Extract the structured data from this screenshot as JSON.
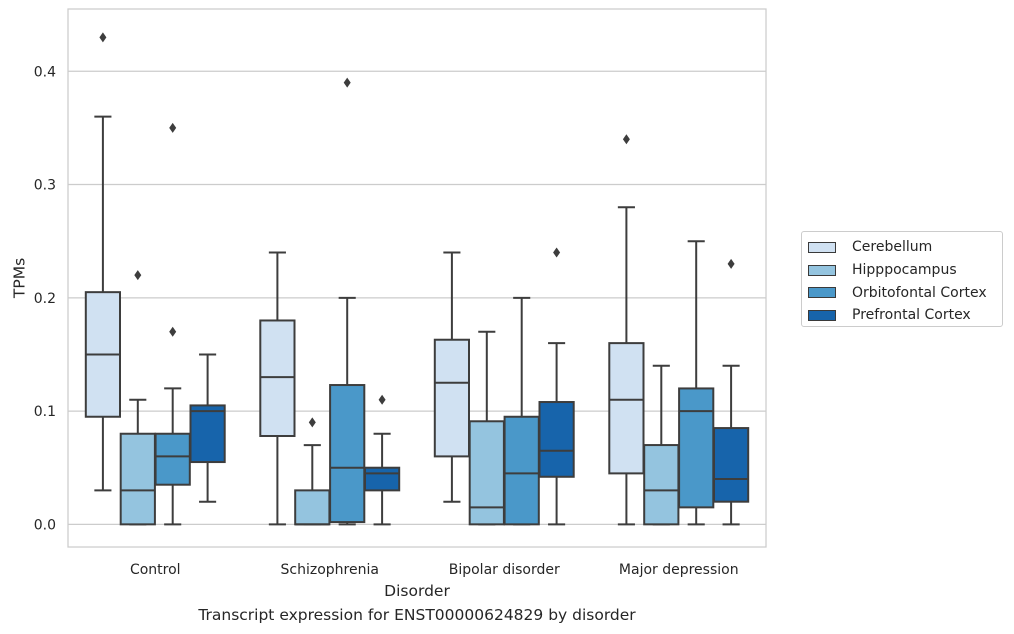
{
  "caption": "Transcript expression for ENST00000624829 by disorder",
  "legend": {
    "items": [
      {
        "label": "Cerebellum",
        "color": "#d0e1f2"
      },
      {
        "label": "Hipppocampus",
        "color": "#94c4df"
      },
      {
        "label": "Orbitofontal Cortex",
        "color": "#4a98c9"
      },
      {
        "label": "Prefrontal Cortex",
        "color": "#1764ab"
      }
    ]
  },
  "chart_data": {
    "type": "box",
    "xlabel": "Disorder",
    "ylabel": "TPMs",
    "ylim": [
      -0.02,
      0.455
    ],
    "yticks": [
      "0.0",
      "0.1",
      "0.2",
      "0.3",
      "0.4"
    ],
    "ytick_values": [
      0.0,
      0.1,
      0.2,
      0.3,
      0.4
    ],
    "grid": true,
    "legend_position": "outside-right",
    "categories": [
      "Control",
      "Schizophrenia",
      "Bipolar disorder",
      "Major depression"
    ],
    "series": [
      {
        "name": "Cerebellum",
        "color": "#d0e1f2",
        "boxes": [
          {
            "whislo": 0.03,
            "q1": 0.095,
            "med": 0.15,
            "q3": 0.205,
            "whishi": 0.36,
            "fliers": [
              0.43
            ]
          },
          {
            "whislo": 0.0,
            "q1": 0.078,
            "med": 0.13,
            "q3": 0.18,
            "whishi": 0.24,
            "fliers": []
          },
          {
            "whislo": 0.02,
            "q1": 0.06,
            "med": 0.125,
            "q3": 0.163,
            "whishi": 0.24,
            "fliers": []
          },
          {
            "whislo": 0.0,
            "q1": 0.045,
            "med": 0.11,
            "q3": 0.16,
            "whishi": 0.28,
            "fliers": [
              0.34
            ]
          }
        ]
      },
      {
        "name": "Hipppocampus",
        "color": "#94c4df",
        "boxes": [
          {
            "whislo": 0.0,
            "q1": 0.0,
            "med": 0.03,
            "q3": 0.08,
            "whishi": 0.11,
            "fliers": [
              0.22
            ]
          },
          {
            "whislo": 0.0,
            "q1": 0.0,
            "med": 0.0,
            "q3": 0.03,
            "whishi": 0.07,
            "fliers": [
              0.09
            ]
          },
          {
            "whislo": 0.0,
            "q1": 0.0,
            "med": 0.015,
            "q3": 0.091,
            "whishi": 0.17,
            "fliers": []
          },
          {
            "whislo": 0.0,
            "q1": 0.0,
            "med": 0.03,
            "q3": 0.07,
            "whishi": 0.14,
            "fliers": []
          }
        ]
      },
      {
        "name": "Orbitofontal Cortex",
        "color": "#4a98c9",
        "boxes": [
          {
            "whislo": 0.0,
            "q1": 0.035,
            "med": 0.06,
            "q3": 0.08,
            "whishi": 0.12,
            "fliers": [
              0.17,
              0.35
            ]
          },
          {
            "whislo": 0.0,
            "q1": 0.002,
            "med": 0.05,
            "q3": 0.123,
            "whishi": 0.2,
            "fliers": [
              0.39
            ]
          },
          {
            "whislo": 0.0,
            "q1": 0.0,
            "med": 0.045,
            "q3": 0.095,
            "whishi": 0.2,
            "fliers": []
          },
          {
            "whislo": 0.0,
            "q1": 0.015,
            "med": 0.1,
            "q3": 0.12,
            "whishi": 0.25,
            "fliers": []
          }
        ]
      },
      {
        "name": "Prefrontal Cortex",
        "color": "#1764ab",
        "boxes": [
          {
            "whislo": 0.02,
            "q1": 0.055,
            "med": 0.1,
            "q3": 0.105,
            "whishi": 0.15,
            "fliers": []
          },
          {
            "whislo": 0.0,
            "q1": 0.03,
            "med": 0.045,
            "q3": 0.05,
            "whishi": 0.08,
            "fliers": [
              0.11
            ]
          },
          {
            "whislo": 0.0,
            "q1": 0.042,
            "med": 0.065,
            "q3": 0.108,
            "whishi": 0.16,
            "fliers": [
              0.24
            ]
          },
          {
            "whislo": 0.0,
            "q1": 0.02,
            "med": 0.04,
            "q3": 0.085,
            "whishi": 0.14,
            "fliers": [
              0.23
            ]
          }
        ]
      }
    ]
  }
}
